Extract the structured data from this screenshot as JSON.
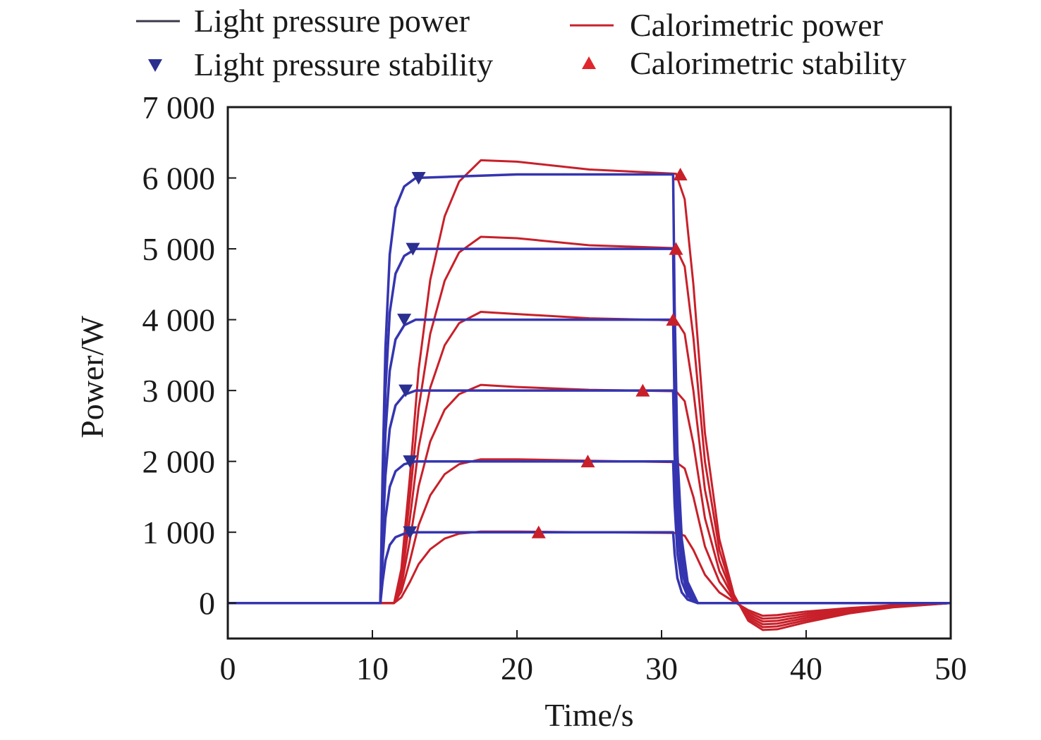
{
  "chart_data": {
    "type": "line",
    "xlabel": "Time/s",
    "ylabel": "Power/W",
    "xlim": [
      0,
      50
    ],
    "ylim": [
      -500,
      7000
    ],
    "xticks": [
      0,
      10,
      20,
      30,
      40,
      50
    ],
    "yticks": [
      0,
      1000,
      2000,
      3000,
      4000,
      5000,
      6000,
      7000
    ],
    "ytick_labels": [
      "0",
      "1 000",
      "2 000",
      "3 000",
      "4 000",
      "5 000",
      "6 000",
      "7 000"
    ],
    "grid": false,
    "legend": {
      "placement": "top",
      "entries": [
        {
          "label": "Light pressure power",
          "kind": "line",
          "color": "#3a3a4a"
        },
        {
          "label": "Calorimetric power",
          "kind": "line",
          "color": "#c8202a"
        },
        {
          "label": "Light pressure stability",
          "kind": "marker-down",
          "color": "#2b2f8f"
        },
        {
          "label": "Calorimetric stability",
          "kind": "marker-up",
          "color": "#e0262c"
        }
      ]
    },
    "colors": {
      "light_pressure": "#3535b0",
      "calorimetric": "#c8202a",
      "stability_down": "#2b2f8f",
      "stability_up": "#c8202a"
    },
    "series": [
      {
        "group": "light_pressure",
        "level": 1000,
        "x": [
          0,
          10.55,
          10.7,
          10.9,
          11.2,
          11.6,
          12.2,
          13,
          20,
          30.8,
          30.9,
          31.1,
          31.4,
          31.8,
          32.5,
          50
        ],
        "y": [
          0,
          0,
          300,
          600,
          820,
          930,
          980,
          1000,
          1000,
          1000,
          700,
          350,
          150,
          50,
          0,
          0
        ]
      },
      {
        "group": "light_pressure",
        "level": 2000,
        "x": [
          0,
          10.55,
          10.7,
          10.9,
          11.2,
          11.6,
          12.2,
          13,
          20,
          30.8,
          30.9,
          31.1,
          31.4,
          31.8,
          32.5,
          50
        ],
        "y": [
          0,
          0,
          600,
          1200,
          1640,
          1860,
          1960,
          2000,
          2000,
          2000,
          1400,
          700,
          300,
          100,
          0,
          0
        ]
      },
      {
        "group": "light_pressure",
        "level": 3000,
        "x": [
          0,
          10.55,
          10.7,
          10.9,
          11.2,
          11.6,
          12.2,
          13,
          20,
          30.8,
          30.9,
          31.1,
          31.4,
          31.8,
          32.5,
          50
        ],
        "y": [
          0,
          0,
          900,
          1800,
          2460,
          2790,
          2940,
          3000,
          3000,
          3000,
          2100,
          1050,
          450,
          150,
          0,
          0
        ]
      },
      {
        "group": "light_pressure",
        "level": 4000,
        "x": [
          0,
          10.55,
          10.7,
          10.9,
          11.2,
          11.6,
          12.2,
          13,
          20,
          30.8,
          30.9,
          31.1,
          31.4,
          31.8,
          32.5,
          50
        ],
        "y": [
          0,
          0,
          1200,
          2400,
          3280,
          3720,
          3920,
          4000,
          4000,
          4000,
          2800,
          1400,
          600,
          200,
          0,
          0
        ]
      },
      {
        "group": "light_pressure",
        "level": 5000,
        "x": [
          0,
          10.55,
          10.7,
          10.9,
          11.2,
          11.6,
          12.2,
          13,
          20,
          30.8,
          30.9,
          31.1,
          31.4,
          31.8,
          32.5,
          50
        ],
        "y": [
          0,
          0,
          1500,
          3000,
          4100,
          4650,
          4900,
          5000,
          5000,
          5000,
          3500,
          1750,
          750,
          250,
          0,
          0
        ]
      },
      {
        "group": "light_pressure",
        "level": 6000,
        "x": [
          0,
          10.55,
          10.7,
          10.9,
          11.2,
          11.6,
          12.2,
          13,
          20,
          30.8,
          30.9,
          31.1,
          31.4,
          31.8,
          32.5,
          50
        ],
        "y": [
          0,
          0,
          1800,
          3600,
          4920,
          5580,
          5880,
          6000,
          6050,
          6050,
          4200,
          2100,
          900,
          300,
          0,
          0
        ]
      },
      {
        "group": "calorimetric",
        "level": 1000,
        "x": [
          0,
          11.5,
          12,
          12.6,
          13.2,
          14,
          15,
          16,
          17.5,
          20,
          25,
          31,
          31.6,
          32.2,
          33,
          34,
          35,
          36,
          37,
          38,
          40,
          43,
          46,
          50
        ],
        "y": [
          0,
          0,
          80,
          300,
          550,
          760,
          910,
          980,
          1010,
          1010,
          1000,
          990,
          950,
          750,
          400,
          150,
          20,
          -100,
          -180,
          -170,
          -120,
          -70,
          -30,
          0
        ]
      },
      {
        "group": "calorimetric",
        "level": 2000,
        "x": [
          0,
          11.5,
          12,
          12.6,
          13.2,
          14,
          15,
          16,
          17.5,
          20,
          25,
          31,
          31.6,
          32.2,
          33,
          34,
          35,
          36,
          37,
          38,
          40,
          43,
          46,
          50
        ],
        "y": [
          0,
          0,
          160,
          600,
          1100,
          1520,
          1820,
          1960,
          2030,
          2030,
          2010,
          1990,
          1900,
          1500,
          800,
          300,
          40,
          -130,
          -220,
          -210,
          -150,
          -85,
          -40,
          0
        ]
      },
      {
        "group": "calorimetric",
        "level": 3000,
        "x": [
          0,
          11.5,
          12,
          12.6,
          13.2,
          14,
          15,
          16,
          17.5,
          20,
          25,
          31,
          31.6,
          32.2,
          33,
          34,
          35,
          36,
          37,
          38,
          40,
          43,
          46,
          50
        ],
        "y": [
          0,
          0,
          240,
          900,
          1650,
          2280,
          2730,
          2950,
          3080,
          3050,
          3010,
          2990,
          2850,
          2250,
          1200,
          450,
          60,
          -160,
          -260,
          -250,
          -180,
          -100,
          -45,
          0
        ]
      },
      {
        "group": "calorimetric",
        "level": 4000,
        "x": [
          0,
          11.5,
          12,
          12.6,
          13.2,
          14,
          15,
          16,
          17.5,
          20,
          25,
          31,
          31.6,
          32.2,
          33,
          34,
          35,
          36,
          37,
          38,
          40,
          43,
          46,
          50
        ],
        "y": [
          0,
          0,
          320,
          1200,
          2200,
          3040,
          3640,
          3950,
          4110,
          4080,
          4020,
          3990,
          3800,
          3000,
          1600,
          600,
          80,
          -190,
          -300,
          -290,
          -210,
          -115,
          -50,
          0
        ]
      },
      {
        "group": "calorimetric",
        "level": 5000,
        "x": [
          0,
          11.5,
          12,
          12.6,
          13.2,
          14,
          15,
          16,
          17.5,
          20,
          25,
          31,
          31.6,
          32.2,
          33,
          34,
          35,
          36,
          37,
          38,
          40,
          43,
          46,
          50
        ],
        "y": [
          0,
          0,
          400,
          1500,
          2750,
          3800,
          4550,
          4950,
          5170,
          5150,
          5050,
          5010,
          4750,
          3750,
          2000,
          750,
          100,
          -220,
          -340,
          -330,
          -240,
          -130,
          -55,
          0
        ]
      },
      {
        "group": "calorimetric",
        "level": 6000,
        "x": [
          0,
          11.5,
          12,
          12.6,
          13.2,
          14,
          15,
          16,
          17.5,
          20,
          25,
          31,
          31.6,
          32.2,
          33,
          34,
          35,
          36,
          37,
          38,
          40,
          43,
          46,
          50
        ],
        "y": [
          0,
          0,
          480,
          1800,
          3300,
          4560,
          5460,
          5950,
          6250,
          6230,
          6120,
          6060,
          5700,
          4500,
          2400,
          900,
          120,
          -250,
          -380,
          -370,
          -270,
          -145,
          -60,
          0
        ]
      }
    ],
    "stability_markers": {
      "light_pressure": [
        {
          "x": 12.6,
          "y": 1000
        },
        {
          "x": 12.6,
          "y": 2000
        },
        {
          "x": 12.3,
          "y": 3000
        },
        {
          "x": 12.2,
          "y": 4000
        },
        {
          "x": 12.8,
          "y": 5000
        },
        {
          "x": 13.2,
          "y": 6000
        }
      ],
      "calorimetric": [
        {
          "x": 21.5,
          "y": 1000
        },
        {
          "x": 24.9,
          "y": 2000
        },
        {
          "x": 28.7,
          "y": 3000
        },
        {
          "x": 30.8,
          "y": 4000
        },
        {
          "x": 31.0,
          "y": 5000
        },
        {
          "x": 31.3,
          "y": 6050
        }
      ]
    }
  }
}
